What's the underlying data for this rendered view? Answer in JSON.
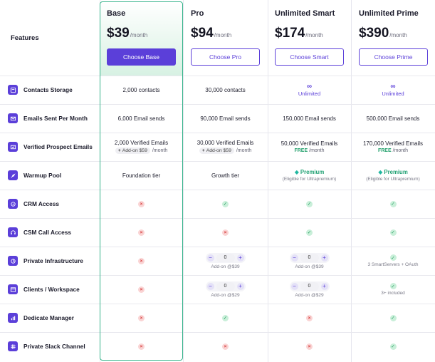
{
  "header": {
    "features_label": "Features",
    "plans": [
      {
        "name": "Base",
        "price": "$39",
        "per": "/month",
        "button": "Choose Base"
      },
      {
        "name": "Pro",
        "price": "$94",
        "per": "/month",
        "button": "Choose Pro"
      },
      {
        "name": "Unlimited Smart",
        "price": "$174",
        "per": "/month",
        "button": "Choose Smart"
      },
      {
        "name": "Unlimited Prime",
        "price": "$390",
        "per": "/month",
        "button": "Choose Prime"
      }
    ]
  },
  "rows": [
    {
      "feature": "Contacts Storage",
      "icon": "database-icon",
      "cells": [
        {
          "text": "2,000 contacts"
        },
        {
          "text": "30,000 contacts"
        },
        {
          "symbol": "∞",
          "unlimited": "Unlimited"
        },
        {
          "symbol": "∞",
          "unlimited": "Unlimited"
        }
      ]
    },
    {
      "feature": "Emails Sent Per Month",
      "icon": "mail-icon",
      "cells": [
        {
          "text": "6,000 Email sends"
        },
        {
          "text": "90,000 Email sends"
        },
        {
          "text": "150,000 Email sends"
        },
        {
          "text": "500,000 Email sends"
        }
      ]
    },
    {
      "feature": "Verified Prospect Emails",
      "icon": "verified-mail-icon",
      "cells": [
        {
          "text": "2,000 Verified Emails",
          "addon": "Add-on $59",
          "per": "/month"
        },
        {
          "text": "30,000 Verified Emails",
          "addon": "Add-on $59",
          "per": "/month"
        },
        {
          "text": "50,000 Verified Emails",
          "free": "FREE",
          "per": "/month"
        },
        {
          "text": "170,000 Verified Emails",
          "free": "FREE",
          "per": "/month"
        }
      ]
    },
    {
      "feature": "Warmup Pool",
      "icon": "rocket-icon",
      "cells": [
        {
          "text": "Foundation tier"
        },
        {
          "text": "Growth tier"
        },
        {
          "premium": "Premium",
          "note": "(Eligible for Ultrapremium)"
        },
        {
          "premium": "Premium",
          "note": "(Eligible for Ultrapremium)"
        }
      ]
    },
    {
      "feature": "CRM Access",
      "icon": "crm-icon",
      "cells": [
        "no",
        "yes",
        "yes",
        "yes"
      ]
    },
    {
      "feature": "CSM Call Access",
      "icon": "headset-icon",
      "cells": [
        "no",
        "no",
        "yes",
        "yes"
      ]
    },
    {
      "feature": "Private Infrastructure",
      "icon": "infrastructure-icon",
      "cells": [
        {
          "status": "no"
        },
        {
          "stepper": "0",
          "note": "Add-on @$39"
        },
        {
          "stepper": "0",
          "note": "Add-on @$39"
        },
        {
          "status": "yes",
          "note": "3 SmartServers + OAuth"
        }
      ]
    },
    {
      "feature": "Clients / Workspace",
      "icon": "workspace-icon",
      "cells": [
        {
          "status": "no"
        },
        {
          "stepper": "0",
          "note": "Add-on @$29"
        },
        {
          "stepper": "0",
          "note": "Add-on @$29"
        },
        {
          "status": "yes",
          "note": "3+ included"
        }
      ]
    },
    {
      "feature": "Dedicate Manager",
      "icon": "chart-icon",
      "cells": [
        "no",
        "yes",
        "no",
        "yes"
      ]
    },
    {
      "feature": "Private Slack Channel",
      "icon": "slack-icon",
      "cells": [
        "no",
        "no",
        "no",
        "yes"
      ]
    }
  ],
  "colors": {
    "accent": "#5b3fd9",
    "highlight_border": "#35b38a",
    "yes": "#1f9a5d",
    "no": "#d63b3b"
  },
  "symbols": {
    "plus": "+",
    "minus": "−",
    "check": "✓",
    "cross": "×",
    "gem": "◆"
  }
}
